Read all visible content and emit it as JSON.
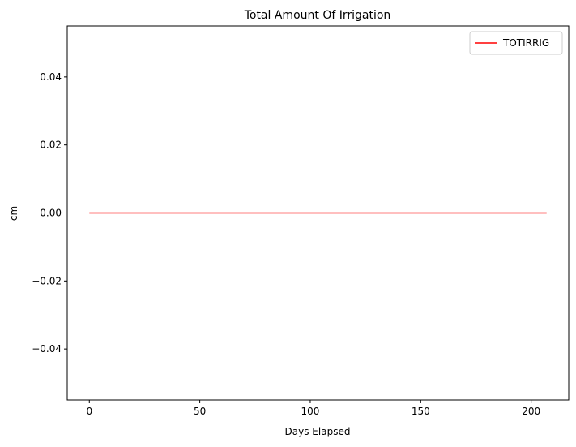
{
  "chart_data": {
    "type": "line",
    "title": "Total Amount Of Irrigation",
    "xlabel": "Days Elapsed",
    "ylabel": "cm",
    "xlim": [
      -10,
      217
    ],
    "ylim": [
      -0.055,
      0.055
    ],
    "xticks": [
      0,
      50,
      100,
      150,
      200
    ],
    "xtick_labels": [
      "0",
      "50",
      "100",
      "150",
      "200"
    ],
    "yticks": [
      -0.04,
      -0.02,
      0.0,
      0.02,
      0.04
    ],
    "ytick_labels": [
      "−0.04",
      "−0.02",
      "0.00",
      "0.02",
      "0.04"
    ],
    "grid": false,
    "legend_position": "top-right",
    "series": [
      {
        "name": "TOTIRRIG",
        "color": "#ff0000",
        "x": [
          0,
          207
        ],
        "y": [
          0,
          0
        ]
      }
    ]
  }
}
